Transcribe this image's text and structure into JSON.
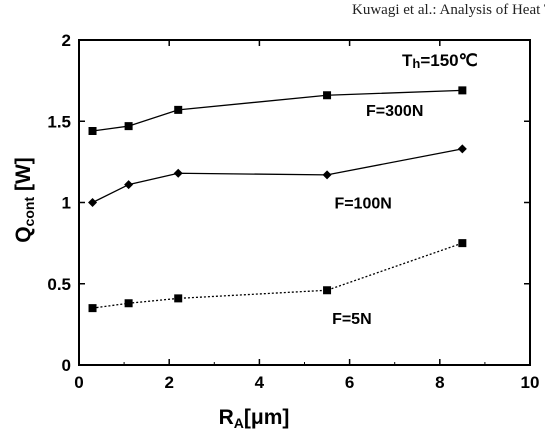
{
  "header": {
    "citation": "Kuwagi et al.: Analysis of Heat T"
  },
  "chart_data": {
    "type": "line",
    "xlabel": {
      "main": "R",
      "sub": "A",
      "rest": "[μm]"
    },
    "ylabel": {
      "main": "Q",
      "sub": "cont",
      "rest": " [W]"
    },
    "xlim": [
      0,
      10
    ],
    "ylim": [
      0,
      2
    ],
    "x_ticks": [
      0,
      2,
      4,
      6,
      8,
      10
    ],
    "y_ticks": [
      0,
      0.5,
      1,
      1.5,
      2
    ],
    "x_tick_labels": [
      "0",
      "2",
      "4",
      "6",
      "8",
      "10"
    ],
    "y_tick_labels": [
      "0",
      "0.5",
      "1",
      "1.5",
      "2"
    ],
    "condition": {
      "main": "T",
      "sub": "h",
      "rest": "=150℃"
    },
    "grid": false,
    "series": [
      {
        "name": "F=300N",
        "marker": "square",
        "line": "solid",
        "x": [
          0.3,
          1.1,
          2.2,
          5.5,
          8.5
        ],
        "y": [
          1.44,
          1.47,
          1.57,
          1.66,
          1.69
        ]
      },
      {
        "name": "F=100N",
        "marker": "diamond",
        "line": "solid",
        "x": [
          0.3,
          1.1,
          2.2,
          5.5,
          8.5
        ],
        "y": [
          1.0,
          1.11,
          1.18,
          1.17,
          1.33
        ]
      },
      {
        "name": "F=5N",
        "marker": "square",
        "line": "dotted",
        "x": [
          0.3,
          1.1,
          2.2,
          5.5,
          8.5
        ],
        "y": [
          0.35,
          0.38,
          0.41,
          0.46,
          0.75
        ]
      }
    ]
  }
}
